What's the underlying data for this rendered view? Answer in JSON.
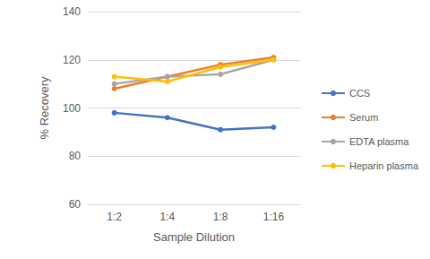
{
  "chart_data": {
    "type": "line",
    "x_label": "Sample Dilution",
    "y_label": "% Recovery",
    "categories": [
      "1:2",
      "1:4",
      "1:8",
      "1:16"
    ],
    "series": [
      {
        "name": "CCS",
        "color": "#4472c4",
        "values": [
          98,
          96,
          91,
          92
        ]
      },
      {
        "name": "Serum",
        "color": "#ed7d31",
        "values": [
          108,
          113,
          118,
          121
        ]
      },
      {
        "name": "EDTA plasma",
        "color": "#a5a5a5",
        "values": [
          110,
          113,
          114,
          120
        ]
      },
      {
        "name": "Heparin plasma",
        "color": "#ffc000",
        "values": [
          113,
          111,
          117,
          120
        ]
      }
    ],
    "ylim": [
      60,
      140
    ],
    "yticks": [
      60,
      80,
      100,
      120,
      140
    ],
    "grid": true,
    "legend": "right",
    "marker": "circle"
  }
}
